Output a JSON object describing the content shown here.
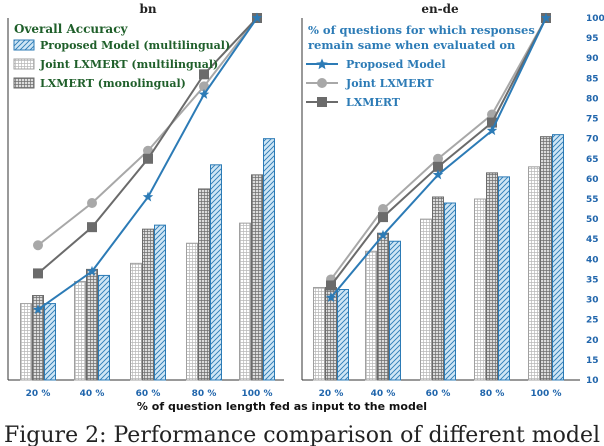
{
  "chart_data": [
    {
      "type": "bar+line",
      "title": "bn",
      "categories": [
        "20 %",
        "40 %",
        "60 %",
        "80 %",
        "100 %"
      ],
      "bar_legend_title": "Overall Accuracy",
      "bar_series": [
        {
          "name": "Proposed Model (multilingual)",
          "values": [
            29,
            36,
            48.5,
            63.5,
            70
          ]
        },
        {
          "name": "Joint LXMERT (multilingual)",
          "values": [
            29,
            34.5,
            39,
            44,
            49
          ]
        },
        {
          "name": "LXMERT (monolingual)",
          "values": [
            31,
            37.5,
            47.5,
            57.5,
            61
          ]
        }
      ],
      "line_series": [
        {
          "values": [
            27.5,
            37,
            55.5,
            81,
            100
          ]
        },
        {
          "values": [
            43.5,
            54,
            67,
            83,
            100
          ]
        },
        {
          "values": [
            36.5,
            48,
            65,
            86,
            100
          ]
        }
      ]
    },
    {
      "type": "bar+line",
      "title": "en-de",
      "categories": [
        "20 %",
        "40 %",
        "60 %",
        "80 %",
        "100 %"
      ],
      "line_legend_title_lines": [
        "% of questions for which responses",
        "remain same when evaluated on"
      ],
      "bar_series": [
        {
          "values": [
            32.5,
            44.5,
            54,
            60.5,
            71
          ]
        },
        {
          "values": [
            33,
            42,
            50,
            55,
            63
          ]
        },
        {
          "values": [
            33,
            46.5,
            55.5,
            61.5,
            70.5
          ]
        }
      ],
      "line_series": [
        {
          "name": "Proposed Model",
          "values": [
            30.5,
            46,
            61,
            72,
            100
          ]
        },
        {
          "name": "Joint LXMERT",
          "values": [
            35,
            52.5,
            65,
            76,
            100
          ]
        },
        {
          "name": "LXMERT",
          "values": [
            33.5,
            50.5,
            63,
            74,
            100
          ]
        }
      ],
      "yticks": [
        10,
        15,
        20,
        25,
        30,
        35,
        40,
        45,
        50,
        55,
        60,
        65,
        70,
        75,
        80,
        85,
        90,
        95,
        100
      ],
      "ylim": [
        10,
        100
      ]
    }
  ],
  "xlabel": "% of question length fed as input to the model",
  "caption": "Figure 2: Performance comparison of different model",
  "colors": {
    "proposed": "#2c7bb6",
    "joint": "#a0a0a0",
    "lxmert": "#6b6b6b",
    "tick_blue": "#2166ac",
    "legend_green": "#1f5f2a"
  }
}
